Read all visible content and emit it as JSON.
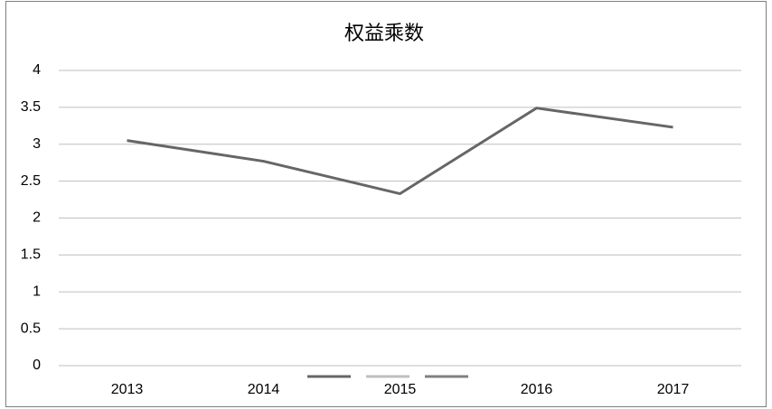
{
  "chart_data": {
    "type": "line",
    "title": "权益乘数",
    "categories": [
      "2013",
      "2014",
      "2015",
      "2016",
      "2017"
    ],
    "series": [
      {
        "color": "#666666",
        "values": [
          3.05,
          2.77,
          2.33,
          3.49,
          3.23
        ]
      },
      {
        "color": "#bfbfbf",
        "values": [
          null,
          null,
          null,
          null,
          null
        ]
      },
      {
        "color": "#808080",
        "values": [
          null,
          null,
          null,
          null,
          null
        ]
      }
    ],
    "ylim": [
      0,
      4
    ],
    "yticks": [
      0,
      0.5,
      1,
      1.5,
      2,
      2.5,
      3,
      3.5,
      4
    ],
    "grid": true
  }
}
